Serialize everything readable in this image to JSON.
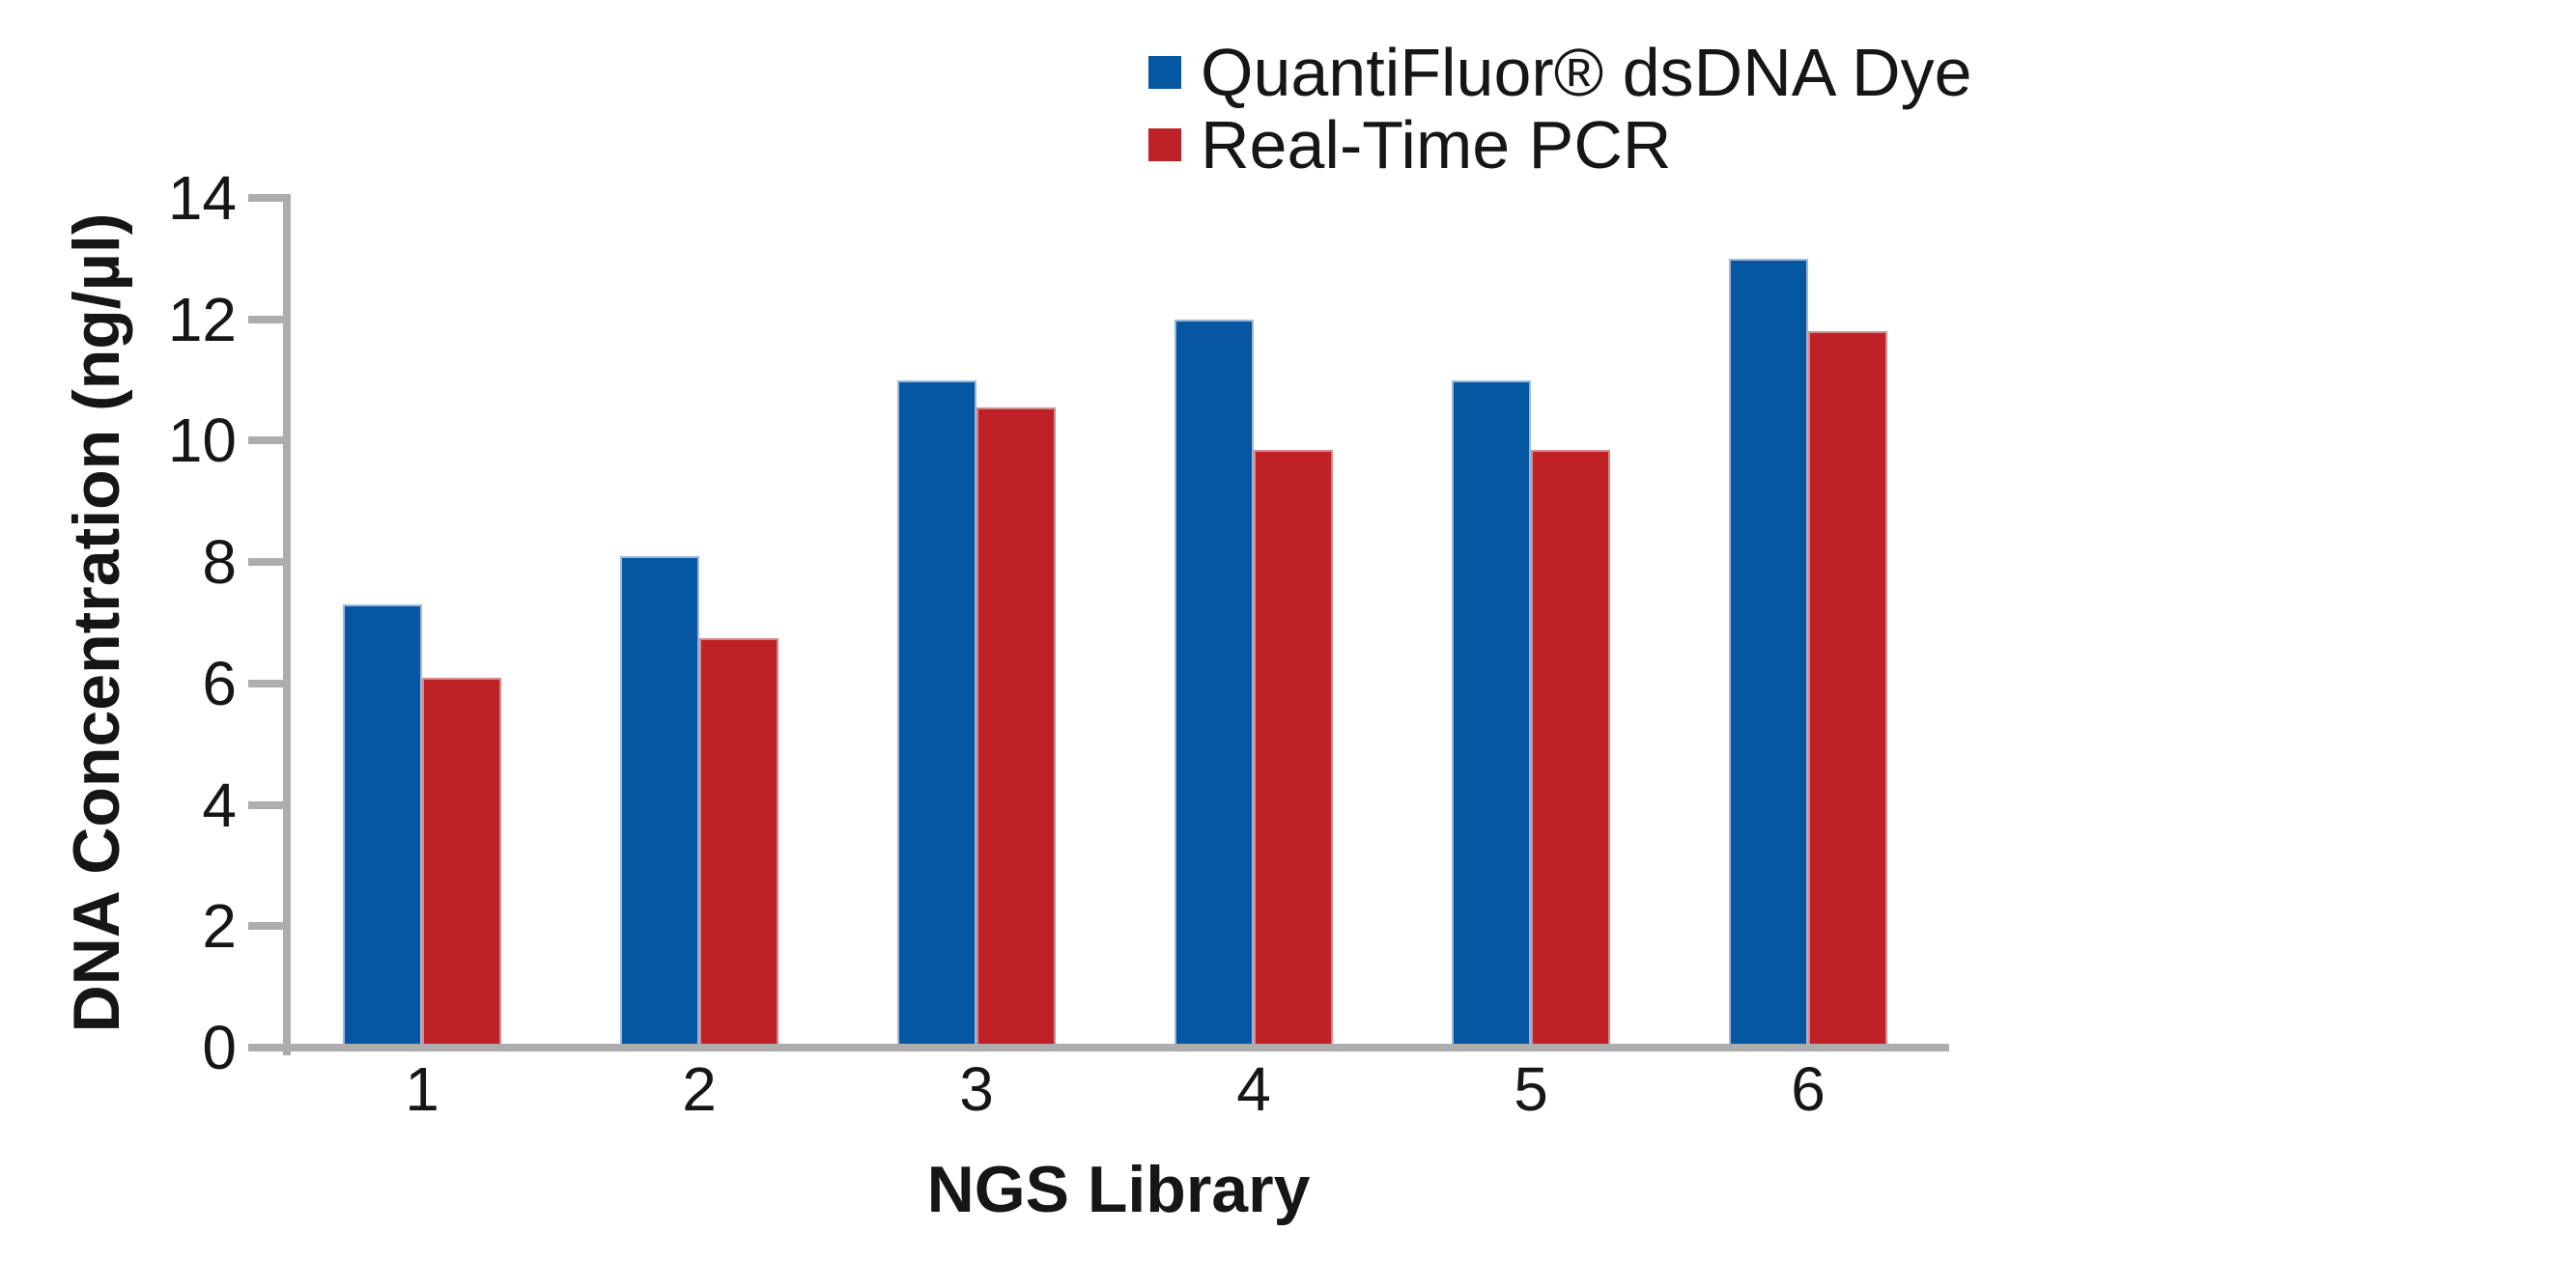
{
  "chart_data": {
    "type": "bar",
    "title": "",
    "categories": [
      "1",
      "2",
      "3",
      "4",
      "5",
      "6"
    ],
    "series": [
      {
        "name": "QuantiFluor® dsDNA Dye",
        "color": "#0557A2",
        "values": [
          7.3,
          8.1,
          11.0,
          12.0,
          11.0,
          13.0
        ]
      },
      {
        "name": "Real-Time PCR",
        "color": "#BE2126",
        "values": [
          6.1,
          6.75,
          10.55,
          9.85,
          9.85,
          11.8
        ]
      }
    ],
    "xlabel": "NGS Library",
    "ylabel": "DNA Concentration (ng/µl)",
    "ylim": [
      0,
      14
    ],
    "y_ticks": [
      0,
      2,
      4,
      6,
      8,
      10,
      12,
      14
    ],
    "grid": false,
    "legend_position": "top-right",
    "axis_color": "#ADADAD",
    "text_color": "#161616"
  }
}
